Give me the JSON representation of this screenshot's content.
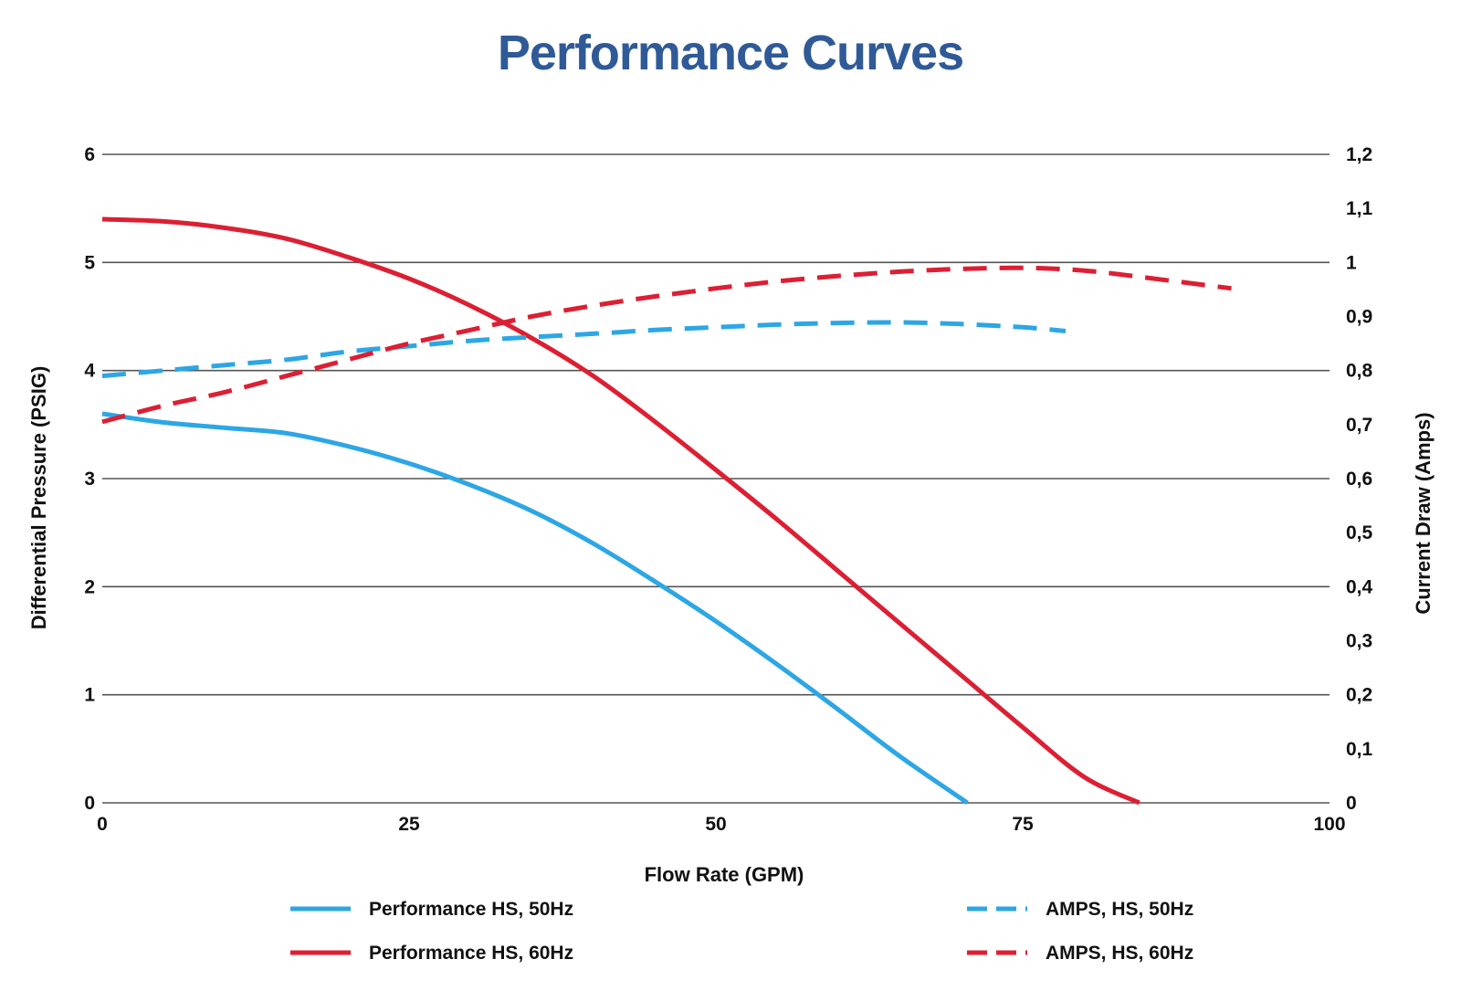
{
  "chart_data": {
    "type": "line",
    "title": "Performance Curves",
    "xlabel": "Flow Rate (GPM)",
    "ylabel_left": "Differential Pressure (PSIG)",
    "ylabel_right": "Current Draw (Amps)",
    "xlim": [
      0,
      100
    ],
    "ylim_left": [
      0,
      6
    ],
    "ylim_right": [
      0,
      1.2
    ],
    "x_ticks": [
      "0",
      "25",
      "50",
      "75",
      "100"
    ],
    "y_left_ticks": [
      "0",
      "1",
      "2",
      "3",
      "4",
      "5",
      "6"
    ],
    "y_right_ticks": [
      "0",
      "0,1",
      "0,2",
      "0,3",
      "0,4",
      "0,5",
      "0,6",
      "0,7",
      "0,8",
      "0,9",
      "1",
      "1,1",
      "1,2"
    ],
    "grid": "horizontal",
    "legend_position": "bottom",
    "colors": {
      "title": "#2f5a97",
      "hz50": "#2da6e5",
      "hz60": "#dc1f33",
      "grid": "#555555"
    },
    "series": [
      {
        "name": "Performance HS, 50Hz",
        "axis": "left",
        "style": "solid",
        "color": "#2da6e5",
        "x": [
          0,
          5,
          10,
          15,
          20,
          25,
          30,
          35,
          40,
          45,
          50,
          55,
          60,
          65,
          70.5
        ],
        "y": [
          3.6,
          3.52,
          3.47,
          3.42,
          3.3,
          3.14,
          2.94,
          2.7,
          2.4,
          2.05,
          1.68,
          1.28,
          0.86,
          0.43,
          0
        ]
      },
      {
        "name": "Performance HS, 60Hz",
        "axis": "left",
        "style": "solid",
        "color": "#dc1f33",
        "x": [
          0,
          5,
          10,
          15,
          20,
          25,
          30,
          35,
          40,
          45,
          50,
          55,
          60,
          65,
          70,
          75,
          80,
          84.5
        ],
        "y": [
          5.4,
          5.38,
          5.32,
          5.22,
          5.05,
          4.85,
          4.6,
          4.3,
          3.95,
          3.53,
          3.08,
          2.62,
          2.14,
          1.66,
          1.18,
          0.7,
          0.24,
          0
        ]
      },
      {
        "name": "AMPS, HS, 50Hz",
        "axis": "right",
        "style": "dashed",
        "color": "#2da6e5",
        "x": [
          0,
          5,
          10,
          15,
          20,
          25,
          30,
          35,
          40,
          45,
          50,
          55,
          60,
          65,
          70,
          75,
          78.5
        ],
        "y": [
          0.79,
          0.8,
          0.81,
          0.82,
          0.835,
          0.845,
          0.855,
          0.862,
          0.868,
          0.875,
          0.88,
          0.885,
          0.888,
          0.889,
          0.886,
          0.88,
          0.873
        ]
      },
      {
        "name": "AMPS, HS, 60Hz",
        "axis": "right",
        "style": "dashed",
        "color": "#dc1f33",
        "x": [
          0,
          5,
          10,
          15,
          20,
          25,
          30,
          35,
          40,
          45,
          50,
          55,
          60,
          65,
          70,
          75,
          80,
          85,
          92
        ],
        "y": [
          0.705,
          0.735,
          0.76,
          0.79,
          0.82,
          0.85,
          0.875,
          0.9,
          0.92,
          0.937,
          0.952,
          0.965,
          0.975,
          0.983,
          0.988,
          0.99,
          0.985,
          0.972,
          0.952
        ]
      }
    ]
  }
}
